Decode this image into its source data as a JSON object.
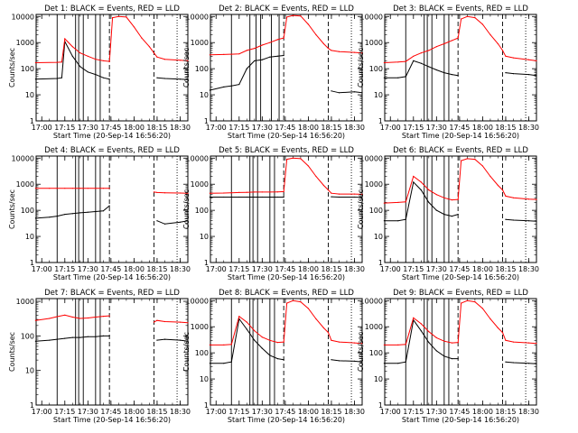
{
  "figure": {
    "x_tick_labels": [
      "17:00",
      "17:15",
      "17:30",
      "17:45",
      "18:00",
      "18:15",
      "18:30"
    ],
    "y_tick_labels": [
      "1",
      "10",
      "100",
      "1000",
      "10000"
    ],
    "y_label": "Counts/sec",
    "colors": {
      "events": "#000000",
      "lld": "#ff0000",
      "axes": "#000000"
    }
  },
  "chart_data": [
    {
      "type": "line",
      "title": "Det 1: BLACK = Events, RED = LLD",
      "xlabel": "Start Time (20-Sep-14 16:56:20)",
      "ylabel": "Counts/sec",
      "yscale": "log",
      "xlim": [
        "16:56:20",
        "18:35"
      ],
      "ylim": [
        1,
        12000
      ],
      "x": [
        "16:56",
        "17:10",
        "17:13",
        "17:15",
        "17:20",
        "17:25",
        "17:30",
        "17:35",
        "17:40",
        "17:44",
        "17:46",
        "17:50",
        "17:55",
        "18:00",
        "18:05",
        "18:10",
        "18:13",
        "18:15",
        "18:20",
        "18:30",
        "18:35"
      ],
      "series": [
        {
          "name": "BLACK = Events",
          "values": [
            40,
            42,
            45,
            1100,
            300,
            120,
            75,
            60,
            45,
            40,
            null,
            null,
            null,
            null,
            null,
            null,
            null,
            45,
            42,
            40,
            38
          ]
        },
        {
          "name": "RED = LLD",
          "values": [
            170,
            175,
            180,
            1400,
            700,
            400,
            300,
            230,
            200,
            190,
            9000,
            10000,
            9500,
            4000,
            1500,
            700,
            400,
            280,
            230,
            210,
            200
          ]
        }
      ],
      "vlines_solid": [
        "17:10",
        "17:22",
        "17:24",
        "17:27",
        "17:35",
        "17:38"
      ],
      "vlines_dashed": [
        "17:44",
        "18:13"
      ],
      "vlines_dotted": [
        "18:28"
      ]
    },
    {
      "type": "line",
      "title": "Det 2: BLACK = Events, RED = LLD",
      "xlabel": "Start Time (20-Sep-14 16:56:20)",
      "ylabel": "Counts/sec",
      "yscale": "log",
      "xlim": [
        "16:56:20",
        "18:35"
      ],
      "ylim": [
        1,
        12000
      ],
      "x": [
        "16:56",
        "17:05",
        "17:10",
        "17:15",
        "17:20",
        "17:25",
        "17:30",
        "17:35",
        "17:40",
        "17:44",
        "17:46",
        "17:50",
        "17:55",
        "18:00",
        "18:05",
        "18:10",
        "18:13",
        "18:15",
        "18:20",
        "18:30",
        "18:35"
      ],
      "series": [
        {
          "name": "BLACK = Events",
          "values": [
            15,
            20,
            22,
            25,
            100,
            200,
            220,
            280,
            300,
            320,
            null,
            null,
            null,
            null,
            null,
            null,
            null,
            14,
            12,
            13,
            12
          ]
        },
        {
          "name": "RED = LLD",
          "values": [
            340,
            350,
            360,
            370,
            500,
            600,
            800,
            1000,
            1300,
            1500,
            9500,
            11000,
            10500,
            5000,
            2000,
            900,
            600,
            500,
            450,
            420,
            400
          ]
        }
      ],
      "vlines_solid": [
        "17:10",
        "17:22",
        "17:26",
        "17:29",
        "17:36",
        "17:41"
      ],
      "vlines_dashed": [
        "17:44",
        "18:13"
      ],
      "vlines_dotted": [
        "18:28"
      ]
    },
    {
      "type": "line",
      "title": "Det 3: BLACK = Events, RED = LLD",
      "xlabel": "Start Time (20-Sep-14 16:56:20)",
      "ylabel": "Counts/sec",
      "yscale": "log",
      "xlim": [
        "16:56:20",
        "18:35"
      ],
      "ylim": [
        1,
        12000
      ],
      "x": [
        "16:56",
        "17:05",
        "17:10",
        "17:15",
        "17:20",
        "17:25",
        "17:30",
        "17:35",
        "17:40",
        "17:44",
        "17:46",
        "17:50",
        "17:55",
        "18:00",
        "18:05",
        "18:10",
        "18:13",
        "18:15",
        "18:20",
        "18:30",
        "18:35"
      ],
      "series": [
        {
          "name": "BLACK = Events",
          "values": [
            45,
            45,
            50,
            200,
            160,
            120,
            90,
            70,
            60,
            55,
            null,
            null,
            null,
            null,
            null,
            null,
            null,
            70,
            65,
            60,
            55
          ]
        },
        {
          "name": "RED = LLD",
          "values": [
            170,
            180,
            190,
            300,
            400,
            500,
            700,
            900,
            1200,
            1500,
            8000,
            10000,
            9000,
            5000,
            2000,
            900,
            500,
            300,
            260,
            220,
            200
          ]
        }
      ],
      "vlines_solid": [
        "17:10",
        "17:22",
        "17:24",
        "17:27",
        "17:35",
        "17:38"
      ],
      "vlines_dashed": [
        "17:44",
        "18:13"
      ],
      "vlines_dotted": [
        "18:28"
      ]
    },
    {
      "type": "line",
      "title": "Det 4: BLACK = Events, RED = LLD",
      "xlabel": "Start Time (20-Sep-14 16:56:20)",
      "ylabel": "Counts/sec",
      "yscale": "log",
      "xlim": [
        "16:56:20",
        "18:35"
      ],
      "ylim": [
        1,
        12000
      ],
      "x": [
        "16:56",
        "17:05",
        "17:10",
        "17:15",
        "17:20",
        "17:25",
        "17:30",
        "17:35",
        "17:40",
        "17:44",
        "17:46",
        "18:09",
        "18:13",
        "18:15",
        "18:20",
        "18:30",
        "18:35"
      ],
      "series": [
        {
          "name": "BLACK = Events",
          "values": [
            50,
            55,
            60,
            70,
            75,
            80,
            85,
            90,
            95,
            150,
            null,
            null,
            null,
            40,
            30,
            35,
            40
          ]
        },
        {
          "name": "RED = LLD",
          "values": [
            700,
            700,
            700,
            700,
            700,
            700,
            700,
            700,
            700,
            700,
            null,
            null,
            500,
            480,
            470,
            460,
            450
          ]
        }
      ],
      "vlines_solid": [
        "17:10",
        "17:22",
        "17:24",
        "17:27",
        "17:35",
        "17:38"
      ],
      "vlines_dashed": [
        "17:44",
        "18:13"
      ],
      "vlines_dotted": [
        "18:28"
      ]
    },
    {
      "type": "line",
      "title": "Det 5: BLACK = Events, RED = LLD",
      "xlabel": "Start Time (20-Sep-14 16:56:20)",
      "ylabel": "Counts/sec",
      "yscale": "log",
      "xlim": [
        "16:56:20",
        "18:35"
      ],
      "ylim": [
        1,
        12000
      ],
      "x": [
        "16:56",
        "17:05",
        "17:10",
        "17:15",
        "17:20",
        "17:25",
        "17:30",
        "17:35",
        "17:40",
        "17:44",
        "17:46",
        "17:50",
        "17:55",
        "18:00",
        "18:05",
        "18:10",
        "18:13",
        "18:15",
        "18:20",
        "18:30",
        "18:35"
      ],
      "series": [
        {
          "name": "BLACK = Events",
          "values": [
            320,
            320,
            320,
            320,
            320,
            320,
            320,
            320,
            320,
            320,
            null,
            null,
            null,
            null,
            null,
            null,
            null,
            330,
            320,
            320,
            310
          ]
        },
        {
          "name": "RED = LLD",
          "values": [
            450,
            460,
            470,
            480,
            490,
            500,
            500,
            500,
            510,
            520,
            9000,
            10000,
            9500,
            5000,
            2000,
            900,
            600,
            450,
            420,
            420,
            410
          ]
        }
      ],
      "vlines_solid": [
        "17:10",
        "17:22",
        "17:24",
        "17:27",
        "17:35",
        "17:38"
      ],
      "vlines_dashed": [
        "17:44",
        "18:13"
      ],
      "vlines_dotted": [
        "18:28"
      ]
    },
    {
      "type": "line",
      "title": "Det 6: BLACK = Events, RED = LLD",
      "xlabel": "Start Time (20-Sep-14 16:56:20)",
      "ylabel": "Counts/sec",
      "yscale": "log",
      "xlim": [
        "16:56:20",
        "18:35"
      ],
      "ylim": [
        1,
        12000
      ],
      "x": [
        "16:56",
        "17:05",
        "17:10",
        "17:15",
        "17:20",
        "17:25",
        "17:30",
        "17:35",
        "17:40",
        "17:44",
        "17:46",
        "17:50",
        "17:55",
        "18:00",
        "18:05",
        "18:10",
        "18:13",
        "18:15",
        "18:20",
        "18:30",
        "18:35"
      ],
      "series": [
        {
          "name": "BLACK = Events",
          "values": [
            40,
            40,
            45,
            1200,
            600,
            200,
            100,
            70,
            60,
            70,
            null,
            null,
            null,
            null,
            null,
            null,
            null,
            45,
            42,
            40,
            38
          ]
        },
        {
          "name": "RED = LLD",
          "values": [
            190,
            200,
            210,
            2000,
            1200,
            600,
            400,
            300,
            250,
            260,
            8000,
            9500,
            9000,
            5000,
            2000,
            900,
            600,
            350,
            300,
            270,
            260
          ]
        }
      ],
      "vlines_solid": [
        "17:10",
        "17:22",
        "17:24",
        "17:27",
        "17:35",
        "17:38"
      ],
      "vlines_dashed": [
        "17:44",
        "18:13"
      ],
      "vlines_dotted": [
        "18:28"
      ]
    },
    {
      "type": "line",
      "title": "Det 7: BLACK = Events, RED = LLD",
      "xlabel": "Start Time (20-Sep-14 16:56:20)",
      "ylabel": "Counts/sec",
      "yscale": "log",
      "xlim": [
        "16:56:20",
        "18:35"
      ],
      "ylim": [
        1,
        1200
      ],
      "x": [
        "16:56",
        "17:05",
        "17:10",
        "17:15",
        "17:20",
        "17:25",
        "17:30",
        "17:35",
        "17:40",
        "17:44",
        "17:46",
        "18:09",
        "18:13",
        "18:15",
        "18:20",
        "18:30",
        "18:35"
      ],
      "series": [
        {
          "name": "BLACK = Events",
          "values": [
            70,
            75,
            80,
            85,
            90,
            90,
            95,
            95,
            100,
            100,
            null,
            null,
            null,
            75,
            80,
            75,
            70
          ]
        },
        {
          "name": "RED = LLD",
          "values": [
            280,
            320,
            360,
            400,
            350,
            320,
            330,
            350,
            370,
            380,
            null,
            null,
            250,
            280,
            260,
            250,
            240
          ]
        }
      ],
      "vlines_solid": [
        "17:10",
        "17:22",
        "17:24",
        "17:27",
        "17:35",
        "17:38"
      ],
      "vlines_dashed": [
        "17:44",
        "18:13"
      ],
      "vlines_dotted": [
        "18:28"
      ]
    },
    {
      "type": "line",
      "title": "Det 8: BLACK = Events, RED = LLD",
      "xlabel": "Start Time (20-Sep-14 16:56:20)",
      "ylabel": "Counts/sec",
      "yscale": "log",
      "xlim": [
        "16:56:20",
        "18:35"
      ],
      "ylim": [
        1,
        12000
      ],
      "x": [
        "16:56",
        "17:05",
        "17:10",
        "17:15",
        "17:20",
        "17:25",
        "17:30",
        "17:35",
        "17:40",
        "17:44",
        "17:46",
        "17:50",
        "17:55",
        "18:00",
        "18:05",
        "18:10",
        "18:13",
        "18:15",
        "18:20",
        "18:30",
        "18:35"
      ],
      "series": [
        {
          "name": "BLACK = Events",
          "values": [
            40,
            40,
            45,
            2000,
            800,
            300,
            150,
            80,
            60,
            55,
            null,
            null,
            null,
            null,
            null,
            null,
            null,
            55,
            50,
            48,
            45
          ]
        },
        {
          "name": "RED = LLD",
          "values": [
            200,
            200,
            210,
            2500,
            1500,
            700,
            400,
            300,
            250,
            260,
            8000,
            10000,
            9000,
            5000,
            2000,
            900,
            600,
            300,
            260,
            240,
            230
          ]
        }
      ],
      "vlines_solid": [
        "17:10",
        "17:22",
        "17:24",
        "17:27",
        "17:35",
        "17:38"
      ],
      "vlines_dashed": [
        "17:44",
        "18:13"
      ],
      "vlines_dotted": [
        "18:28"
      ]
    },
    {
      "type": "line",
      "title": "Det 9: BLACK = Events, RED = LLD",
      "xlabel": "Start Time (20-Sep-14 16:56:20)",
      "ylabel": "Counts/sec",
      "yscale": "log",
      "xlim": [
        "16:56:20",
        "18:35"
      ],
      "ylim": [
        1,
        12000
      ],
      "x": [
        "16:56",
        "17:05",
        "17:10",
        "17:15",
        "17:20",
        "17:25",
        "17:30",
        "17:35",
        "17:40",
        "17:44",
        "17:46",
        "17:50",
        "17:55",
        "18:00",
        "18:05",
        "18:10",
        "18:13",
        "18:15",
        "18:20",
        "18:30",
        "18:35"
      ],
      "series": [
        {
          "name": "BLACK = Events",
          "values": [
            40,
            40,
            45,
            1800,
            700,
            250,
            120,
            75,
            60,
            60,
            null,
            null,
            null,
            null,
            null,
            null,
            null,
            45,
            42,
            40,
            38
          ]
        },
        {
          "name": "RED = LLD",
          "values": [
            200,
            200,
            210,
            2200,
            1300,
            650,
            380,
            280,
            240,
            250,
            8000,
            10000,
            9000,
            5000,
            2000,
            900,
            600,
            300,
            260,
            240,
            230
          ]
        }
      ],
      "vlines_solid": [
        "17:10",
        "17:22",
        "17:24",
        "17:27",
        "17:35",
        "17:38"
      ],
      "vlines_dashed": [
        "17:44",
        "18:13"
      ],
      "vlines_dotted": [
        "18:28"
      ]
    }
  ]
}
